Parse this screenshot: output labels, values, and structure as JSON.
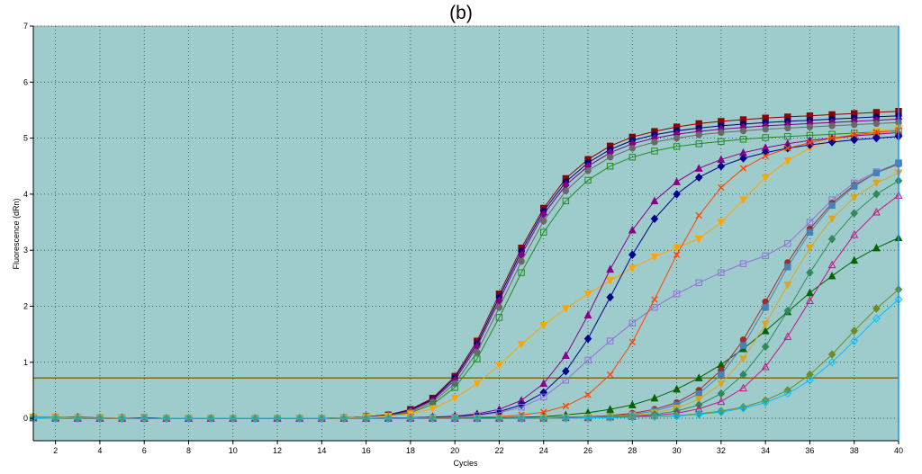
{
  "chart_data": {
    "type": "line",
    "title": "(b)",
    "xlabel": "Cycles",
    "ylabel": "Fluorescence (dRn)",
    "xlim": [
      1,
      40
    ],
    "ylim": [
      -0.4,
      7
    ],
    "x_ticks": [
      "2",
      "4",
      "6",
      "8",
      "10",
      "12",
      "14",
      "16",
      "18",
      "20",
      "22",
      "24",
      "26",
      "28",
      "30",
      "32",
      "34",
      "36",
      "38",
      "40"
    ],
    "y_ticks": [
      "0",
      "1",
      "2",
      "3",
      "4",
      "5",
      "6",
      "7"
    ],
    "grid": true,
    "threshold": 0.72,
    "colors": {
      "plot_background": "#9ecccc",
      "grid": "#2f3f3f",
      "threshold": "#7a6a1a",
      "cursor": "#1e90ff"
    },
    "series": [
      {
        "color": "#8b0000",
        "marker": "square",
        "values": [
          0.02,
          0.02,
          0.01,
          0.01,
          0.01,
          0.01,
          0,
          0,
          0,
          0,
          0,
          0,
          0,
          0,
          0.01,
          0.03,
          0.06,
          0.16,
          0.36,
          0.75,
          1.38,
          2.22,
          3.04,
          3.75,
          4.28,
          4.62,
          4.86,
          5.02,
          5.12,
          5.2,
          5.26,
          5.3,
          5.33,
          5.36,
          5.38,
          5.4,
          5.42,
          5.44,
          5.46,
          5.48
        ]
      },
      {
        "color": "#000080",
        "marker": "circle",
        "values": [
          0.02,
          0.02,
          0.01,
          0.01,
          0.01,
          0.01,
          0,
          0,
          0,
          0,
          0,
          0,
          0,
          0,
          0.01,
          0.03,
          0.06,
          0.15,
          0.34,
          0.72,
          1.33,
          2.16,
          2.98,
          3.7,
          4.22,
          4.56,
          4.8,
          4.96,
          5.06,
          5.13,
          5.18,
          5.22,
          5.25,
          5.28,
          5.3,
          5.32,
          5.34,
          5.36,
          5.38,
          5.4
        ]
      },
      {
        "color": "#800080",
        "marker": "diamond",
        "values": [
          0.03,
          0.02,
          0.02,
          0.01,
          0.01,
          0,
          0,
          0,
          0,
          0,
          0,
          0,
          0,
          0,
          0.01,
          0.03,
          0.05,
          0.14,
          0.32,
          0.68,
          1.28,
          2.1,
          2.92,
          3.64,
          4.16,
          4.5,
          4.74,
          4.9,
          5.0,
          5.07,
          5.12,
          5.16,
          5.19,
          5.22,
          5.24,
          5.26,
          5.28,
          5.3,
          5.32,
          5.34
        ]
      },
      {
        "color": "#696969",
        "marker": "circle",
        "values": [
          0.02,
          0.01,
          0.01,
          0.01,
          0.01,
          0,
          0,
          0,
          0,
          0,
          0,
          0,
          0,
          0,
          0.01,
          0.02,
          0.05,
          0.12,
          0.29,
          0.62,
          1.18,
          1.98,
          2.8,
          3.52,
          4.06,
          4.42,
          4.66,
          4.82,
          4.93,
          5.0,
          5.06,
          5.1,
          5.13,
          5.16,
          5.18,
          5.2,
          5.22,
          5.24,
          5.26,
          5.28
        ]
      },
      {
        "color": "#228b22",
        "marker": "square-open",
        "values": [
          0.01,
          0.01,
          0.01,
          0.01,
          0,
          0,
          0,
          0,
          0,
          0,
          0,
          0,
          0,
          0,
          0.01,
          0.02,
          0.04,
          0.1,
          0.25,
          0.55,
          1.06,
          1.8,
          2.6,
          3.32,
          3.88,
          4.25,
          4.5,
          4.66,
          4.77,
          4.85,
          4.9,
          4.94,
          4.98,
          5.01,
          5.03,
          5.05,
          5.07,
          5.09,
          5.11,
          5.13
        ]
      },
      {
        "color": "#ffa500",
        "marker": "triangle-down",
        "values": [
          0.02,
          0.02,
          0.01,
          0.01,
          0.01,
          0,
          0,
          0,
          0,
          0,
          0,
          0,
          0,
          0,
          0.01,
          0.02,
          0.04,
          0.08,
          0.17,
          0.36,
          0.62,
          0.95,
          1.32,
          1.66,
          1.96,
          2.22,
          2.46,
          2.68,
          2.88,
          3.05,
          3.2,
          3.5,
          3.9,
          4.3,
          4.6,
          4.82,
          4.96,
          5.05,
          5.12,
          5.18
        ]
      },
      {
        "color": "#8b008b",
        "marker": "triangle",
        "values": [
          0.01,
          0.01,
          0.01,
          0,
          0,
          0,
          0,
          0,
          0,
          0,
          0,
          0,
          0,
          0,
          0,
          0,
          0.01,
          0.01,
          0.02,
          0.04,
          0.08,
          0.16,
          0.32,
          0.62,
          1.12,
          1.84,
          2.66,
          3.36,
          3.88,
          4.22,
          4.46,
          4.62,
          4.74,
          4.83,
          4.9,
          4.96,
          5.0,
          5.04,
          5.07,
          5.1
        ]
      },
      {
        "color": "#00008b",
        "marker": "diamond",
        "values": [
          0.01,
          0.01,
          0,
          0,
          0,
          0,
          0,
          0,
          0,
          0,
          0,
          0,
          0,
          0,
          0,
          0,
          0,
          0.01,
          0.02,
          0.03,
          0.06,
          0.12,
          0.24,
          0.46,
          0.84,
          1.42,
          2.16,
          2.92,
          3.56,
          4.0,
          4.3,
          4.5,
          4.64,
          4.74,
          4.82,
          4.88,
          4.93,
          4.97,
          5.0,
          5.03
        ]
      },
      {
        "color": "#9370db",
        "marker": "square-open",
        "values": [
          0.01,
          0.01,
          0,
          0,
          0,
          0,
          0,
          0,
          0,
          0,
          0,
          0,
          0,
          0,
          0,
          0,
          0,
          0.01,
          0.01,
          0.02,
          0.05,
          0.1,
          0.2,
          0.38,
          0.68,
          1.04,
          1.38,
          1.7,
          1.98,
          2.22,
          2.42,
          2.6,
          2.76,
          2.9,
          3.12,
          3.5,
          3.9,
          4.2,
          4.4,
          4.55
        ]
      },
      {
        "color": "#ff4500",
        "marker": "cross",
        "values": [
          0.02,
          0.01,
          0.01,
          0.01,
          0,
          0,
          0,
          0,
          0,
          0,
          0,
          0,
          0,
          0,
          0,
          0,
          0,
          0,
          0.01,
          0.01,
          0.02,
          0.03,
          0.06,
          0.11,
          0.22,
          0.42,
          0.78,
          1.36,
          2.12,
          2.92,
          3.62,
          4.12,
          4.46,
          4.68,
          4.82,
          4.92,
          5.0,
          5.06,
          5.1,
          5.14
        ]
      },
      {
        "color": "#006400",
        "marker": "triangle",
        "values": [
          0.01,
          0.01,
          0,
          0,
          0,
          0,
          0,
          0,
          0,
          0,
          0,
          0,
          0,
          0,
          0,
          0,
          0,
          0,
          0,
          0,
          0.01,
          0.01,
          0.02,
          0.03,
          0.06,
          0.1,
          0.16,
          0.24,
          0.36,
          0.52,
          0.72,
          0.96,
          1.24,
          1.56,
          1.9,
          2.24,
          2.54,
          2.82,
          3.04,
          3.22
        ]
      },
      {
        "color": "#a52a2a",
        "marker": "circle",
        "values": [
          0.01,
          0,
          0,
          0,
          0,
          0,
          0,
          0,
          0,
          0,
          0,
          0,
          0,
          0,
          0,
          0,
          0,
          0,
          0,
          0,
          0,
          0,
          0.01,
          0.01,
          0.02,
          0.03,
          0.05,
          0.09,
          0.16,
          0.28,
          0.5,
          0.86,
          1.4,
          2.08,
          2.78,
          3.38,
          3.84,
          4.16,
          4.38,
          4.54
        ]
      },
      {
        "color": "#4682b4",
        "marker": "square",
        "values": [
          0.01,
          0,
          0,
          0,
          0,
          0,
          0,
          0,
          0,
          0,
          0,
          0,
          0,
          0,
          0,
          0,
          0,
          0,
          0,
          0,
          0,
          0,
          0.01,
          0.01,
          0.01,
          0.02,
          0.04,
          0.07,
          0.13,
          0.24,
          0.44,
          0.78,
          1.3,
          1.98,
          2.7,
          3.32,
          3.8,
          4.14,
          4.38,
          4.56
        ]
      },
      {
        "color": "#daa520",
        "marker": "triangle-down",
        "values": [
          0.02,
          0.01,
          0.01,
          0,
          0,
          0,
          0,
          0,
          0,
          0,
          0,
          0,
          0,
          0,
          0,
          0,
          0,
          0,
          0,
          0,
          0,
          0,
          0,
          0.01,
          0.01,
          0.02,
          0.03,
          0.05,
          0.1,
          0.18,
          0.34,
          0.62,
          1.06,
          1.68,
          2.38,
          3.04,
          3.56,
          3.94,
          4.2,
          4.38
        ]
      },
      {
        "color": "#2e8b57",
        "marker": "diamond",
        "values": [
          0.01,
          0,
          0,
          0,
          0,
          0,
          0,
          0,
          0,
          0,
          0,
          0,
          0,
          0,
          0,
          0,
          0,
          0,
          0,
          0,
          0,
          0,
          0,
          0,
          0.01,
          0.01,
          0.02,
          0.04,
          0.07,
          0.13,
          0.24,
          0.44,
          0.78,
          1.28,
          1.92,
          2.6,
          3.2,
          3.66,
          4.0,
          4.24
        ]
      },
      {
        "color": "#c71585",
        "marker": "triangle-open",
        "values": [
          0.01,
          0,
          0,
          0,
          0,
          0,
          0,
          0,
          0,
          0,
          0,
          0,
          0,
          0,
          0,
          0,
          0,
          0,
          0,
          0,
          0,
          0,
          0,
          0,
          0.01,
          0.01,
          0.02,
          0.03,
          0.05,
          0.09,
          0.17,
          0.3,
          0.54,
          0.92,
          1.46,
          2.1,
          2.74,
          3.28,
          3.68,
          3.98
        ]
      },
      {
        "color": "#6b8e23",
        "marker": "diamond",
        "values": [
          0.01,
          0,
          0,
          0,
          0,
          0,
          0,
          0,
          0,
          0,
          0,
          0,
          0,
          0,
          0,
          0,
          0,
          0,
          0,
          0,
          0,
          0,
          0,
          0,
          0,
          0.01,
          0.01,
          0.02,
          0.03,
          0.05,
          0.08,
          0.13,
          0.2,
          0.32,
          0.5,
          0.78,
          1.14,
          1.56,
          1.96,
          2.3
        ]
      },
      {
        "color": "#00bfff",
        "marker": "diamond-open",
        "values": [
          0.01,
          0,
          0,
          0,
          0,
          0,
          0,
          0,
          0,
          0,
          0,
          0,
          0,
          0,
          0,
          0,
          0,
          0,
          0,
          0,
          0,
          0,
          0,
          0,
          0,
          0.01,
          0.01,
          0.02,
          0.03,
          0.04,
          0.07,
          0.11,
          0.18,
          0.28,
          0.44,
          0.68,
          1.0,
          1.38,
          1.78,
          2.12
        ]
      }
    ]
  }
}
